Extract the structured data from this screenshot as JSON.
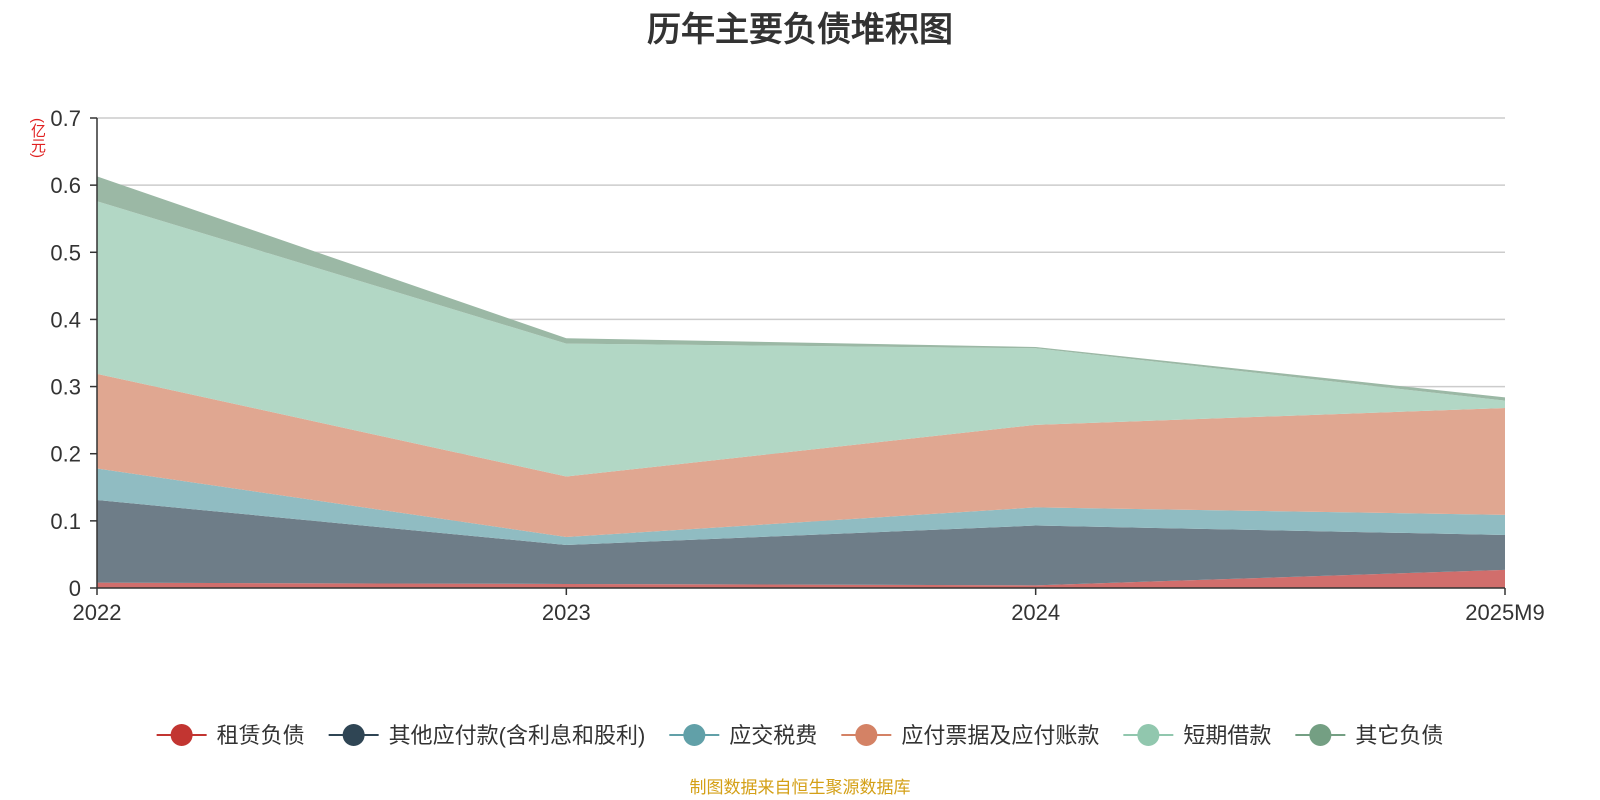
{
  "chart_data": {
    "type": "area",
    "title": "历年主要负债堆积图",
    "unit_label": "(亿元)",
    "categories": [
      "2022",
      "2023",
      "2024",
      "2025M9"
    ],
    "ylim": [
      0,
      0.7
    ],
    "yticks": [
      "0",
      "0.1",
      "0.2",
      "0.3",
      "0.4",
      "0.5",
      "0.6",
      "0.7"
    ],
    "stacked": true,
    "grid": true,
    "legend_position": "bottom",
    "series": [
      {
        "name": "租赁负债",
        "values": [
          0.008,
          0.006,
          0.004,
          0.027
        ],
        "color": "#c23531",
        "fill": "#d16e6c"
      },
      {
        "name": "其他应付款(含利息和股利)",
        "values": [
          0.123,
          0.058,
          0.089,
          0.052
        ],
        "color": "#2f4554",
        "fill": "#6e7d88"
      },
      {
        "name": "应交税费",
        "values": [
          0.047,
          0.012,
          0.027,
          0.03
        ],
        "color": "#61a0a8",
        "fill": "#90bcc2"
      },
      {
        "name": "应付票据及应付账款",
        "values": [
          0.141,
          0.09,
          0.123,
          0.159
        ],
        "color": "#d48265",
        "fill": "#e0a791"
      },
      {
        "name": "短期借款",
        "values": [
          0.257,
          0.198,
          0.114,
          0.011
        ],
        "color": "#91c7ae",
        "fill": "#b2d7c5"
      },
      {
        "name": "其它负债",
        "values": [
          0.037,
          0.008,
          0.002,
          0.005
        ],
        "color": "#749f83",
        "fill": "#9bb8a5"
      }
    ],
    "source_note": "制图数据来自恒生聚源数据库"
  }
}
